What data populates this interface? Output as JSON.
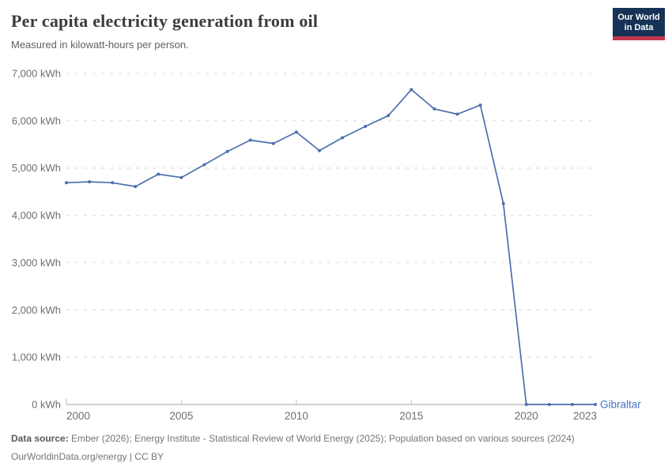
{
  "header": {
    "title": "Per capita electricity generation from oil",
    "subtitle": "Measured in kilowatt-hours per person.",
    "logo_line1": "Our World",
    "logo_line2": "in Data"
  },
  "colors": {
    "line": "#4d6fae",
    "entity_label": "#4a70c0",
    "logo_bg": "#163357",
    "logo_stripe": "#c0374d",
    "gridline": "#e3e3e3",
    "axis_line": "#a3a3a3",
    "tick_label": "#6e6e6e"
  },
  "chart_data": {
    "type": "line",
    "title": "Per capita electricity generation from oil",
    "ylabel": "",
    "xlabel": "",
    "unit": "kilowatt-hours per person",
    "grid": "horizontal-dashed",
    "legend_position": "end-of-line-label",
    "xlim": [
      2000,
      2023
    ],
    "ylim": [
      0,
      7000
    ],
    "series": [
      {
        "name": "Gibraltar",
        "color": "#4d6fae",
        "x": [
          2000,
          2001,
          2002,
          2003,
          2004,
          2005,
          2006,
          2007,
          2008,
          2009,
          2010,
          2011,
          2012,
          2013,
          2014,
          2015,
          2016,
          2017,
          2018,
          2019,
          2020,
          2021,
          2022,
          2023
        ],
        "values": [
          4690,
          4710,
          4690,
          4610,
          4870,
          4800,
          5070,
          5350,
          5590,
          5520,
          5760,
          5370,
          5640,
          5880,
          6110,
          6660,
          6250,
          6140,
          6330,
          4250,
          0,
          0,
          0,
          0
        ]
      }
    ],
    "y_ticks": [
      {
        "value": 0,
        "label": "0 kWh"
      },
      {
        "value": 1000,
        "label": "1,000 kWh"
      },
      {
        "value": 2000,
        "label": "2,000 kWh"
      },
      {
        "value": 3000,
        "label": "3,000 kWh"
      },
      {
        "value": 4000,
        "label": "4,000 kWh"
      },
      {
        "value": 5000,
        "label": "5,000 kWh"
      },
      {
        "value": 6000,
        "label": "6,000 kWh"
      },
      {
        "value": 7000,
        "label": "7,000 kWh"
      }
    ],
    "x_ticks": [
      {
        "value": 2000,
        "label": "2000",
        "tick": false,
        "anchor": "start"
      },
      {
        "value": 2005,
        "label": "2005",
        "tick": true,
        "anchor": "middle"
      },
      {
        "value": 2010,
        "label": "2010",
        "tick": true,
        "anchor": "middle"
      },
      {
        "value": 2015,
        "label": "2015",
        "tick": true,
        "anchor": "middle"
      },
      {
        "value": 2020,
        "label": "2020",
        "tick": true,
        "anchor": "middle"
      },
      {
        "value": 2023,
        "label": "2023",
        "tick": false,
        "anchor": "end"
      }
    ]
  },
  "footer": {
    "source_label": "Data source:",
    "source_text": " Ember (2026); Energy Institute - Statistical Review of World Energy (2025); Population based on various sources (2024)",
    "license_line": "OurWorldinData.org/energy | CC BY"
  }
}
